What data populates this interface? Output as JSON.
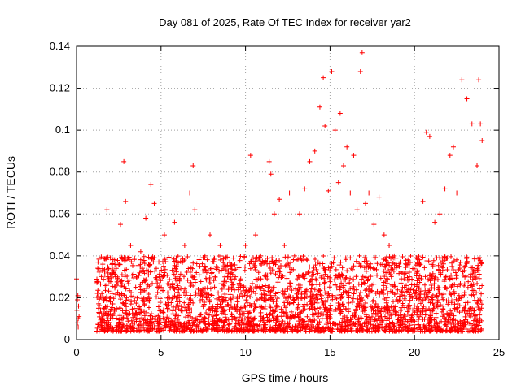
{
  "chart_data": {
    "type": "scatter",
    "title": "Day 081 of 2025, Rate Of TEC Index for receiver yar2",
    "xlabel": "GPS time / hours",
    "ylabel": "ROTI / TECUs",
    "xlim": [
      0,
      25
    ],
    "ylim": [
      0,
      0.14
    ],
    "xticks": [
      "0",
      "5",
      "10",
      "15",
      "20",
      "25"
    ],
    "yticks": [
      "0",
      "0.02",
      "0.04",
      "0.06",
      "0.08",
      "0.1",
      "0.12",
      "0.14"
    ],
    "grid": true,
    "marker": "+",
    "marker_color": "#ff0000",
    "series": [
      {
        "x": [
          0.0,
          0.02,
          0.05,
          0.08,
          0.1,
          0.12,
          0.15,
          0.05,
          0.1,
          1.3,
          1.5,
          1.8,
          2.0,
          2.3,
          2.6,
          2.8,
          2.9,
          3.2,
          3.5,
          3.8,
          4.1,
          4.4,
          4.6,
          4.9,
          5.2,
          5.5,
          5.8,
          6.1,
          6.4,
          6.7,
          6.9,
          7.0,
          7.3,
          7.6,
          7.9,
          8.2,
          8.5,
          8.8,
          9.1,
          9.4,
          9.7,
          10.0,
          10.3,
          10.6,
          10.9,
          11.2,
          11.4,
          11.5,
          11.7,
          12.0,
          12.3,
          12.6,
          12.9,
          13.2,
          13.5,
          13.8,
          14.1,
          14.4,
          14.6,
          14.7,
          14.9,
          15.1,
          15.3,
          15.5,
          15.6,
          15.8,
          16.0,
          16.2,
          16.4,
          16.6,
          16.8,
          16.9,
          17.1,
          17.3,
          17.6,
          17.9,
          18.2,
          18.5,
          18.8,
          19.1,
          19.4,
          19.7,
          20.0,
          20.3,
          20.5,
          20.7,
          20.9,
          21.2,
          21.5,
          21.8,
          22.1,
          22.3,
          22.5,
          22.8,
          23.1,
          23.4,
          23.7,
          23.8,
          23.9,
          24.0
        ],
        "y": [
          0.029,
          0.014,
          0.008,
          0.021,
          0.006,
          0.016,
          0.011,
          0.019,
          0.01,
          0.015,
          0.022,
          0.062,
          0.018,
          0.03,
          0.055,
          0.085,
          0.066,
          0.045,
          0.025,
          0.042,
          0.058,
          0.074,
          0.065,
          0.03,
          0.05,
          0.02,
          0.056,
          0.028,
          0.045,
          0.07,
          0.083,
          0.062,
          0.035,
          0.04,
          0.05,
          0.03,
          0.045,
          0.02,
          0.035,
          0.03,
          0.025,
          0.045,
          0.088,
          0.05,
          0.04,
          0.03,
          0.085,
          0.079,
          0.06,
          0.067,
          0.045,
          0.07,
          0.04,
          0.06,
          0.072,
          0.085,
          0.09,
          0.111,
          0.125,
          0.102,
          0.071,
          0.128,
          0.1,
          0.075,
          0.108,
          0.083,
          0.092,
          0.07,
          0.088,
          0.062,
          0.128,
          0.137,
          0.065,
          0.07,
          0.055,
          0.068,
          0.05,
          0.045,
          0.04,
          0.035,
          0.025,
          0.03,
          0.022,
          0.02,
          0.066,
          0.099,
          0.097,
          0.056,
          0.06,
          0.072,
          0.088,
          0.092,
          0.07,
          0.124,
          0.115,
          0.103,
          0.083,
          0.124,
          0.103,
          0.095
        ],
        "dense_band": {
          "x_start": 1.2,
          "x_end": 24.0,
          "y_floor": 0.004,
          "y_ceiling": 0.04,
          "points_per_hour": 120
        }
      }
    ]
  }
}
